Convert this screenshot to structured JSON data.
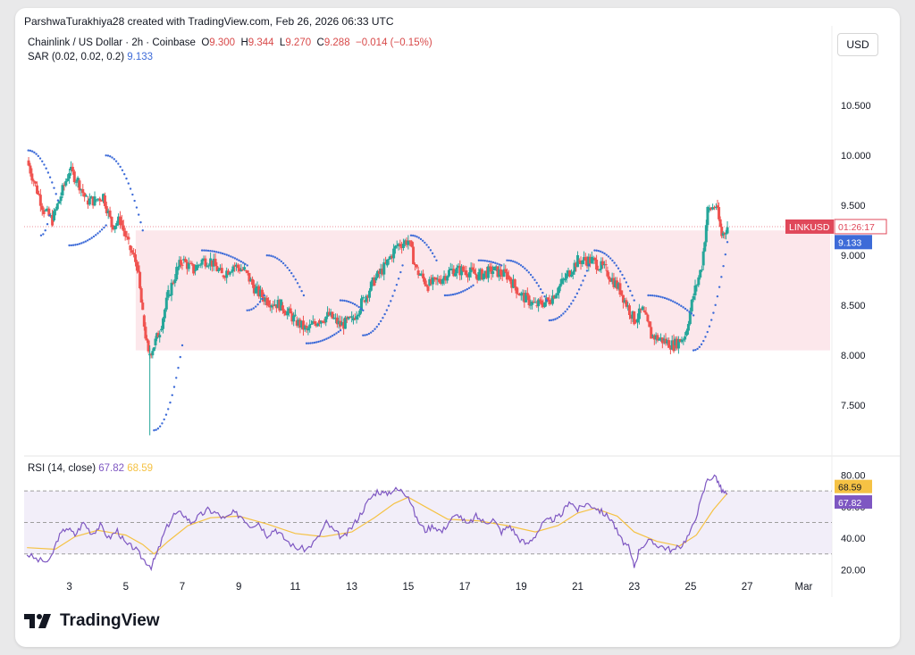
{
  "header": {
    "text": "ParshwaTurakhiya28 created with TradingView.com, Feb 26, 2026 06:33 UTC"
  },
  "legend": {
    "symbol": "Chainlink / US Dollar · 2h · Coinbase",
    "o_label": "O",
    "o_value": "9.300",
    "h_label": "H",
    "h_value": "9.344",
    "l_label": "L",
    "l_value": "9.270",
    "c_label": "C",
    "c_value": "9.288",
    "change": "−0.014 (−0.15%)",
    "sar_label": "SAR (0.02, 0.02, 0.2)",
    "sar_value": "9.133",
    "rsi_label": "RSI (14, close)",
    "rsi_value": "67.82",
    "rsi_ma_value": "68.59"
  },
  "currency_button": "USD",
  "footer": {
    "brand": "TradingView"
  },
  "colors": {
    "up": "#26a69a",
    "down": "#ef5350",
    "sar": "#3d6bd8",
    "rsi": "#7e57c2",
    "rsi_ma": "#f5c244",
    "zone": "#fbe3e7",
    "rsi_band": "#ede7f6",
    "price_tag": "#e0485a"
  },
  "chart_data": [
    {
      "type": "candlestick",
      "title": "Chainlink / US Dollar · 2h · Coinbase",
      "y_axis": {
        "ticks": [
          7.5,
          8.0,
          8.5,
          9.0,
          9.5,
          10.0,
          10.5
        ],
        "tick_labels": [
          "7.500",
          "8.000",
          "8.500",
          "9.000",
          "9.500",
          "10.000",
          "10.500"
        ],
        "ylim": [
          7.1,
          10.85
        ],
        "position": "right"
      },
      "x_axis": {
        "ticks": [
          3,
          5,
          7,
          9,
          11,
          13,
          15,
          17,
          19,
          21,
          23,
          25,
          27,
          "Mar"
        ],
        "tick_labels": [
          "3",
          "5",
          "7",
          "9",
          "11",
          "13",
          "15",
          "17",
          "19",
          "21",
          "23",
          "25",
          "27",
          "Mar"
        ],
        "xlim": [
          1.4,
          30.0
        ]
      },
      "price_tag": {
        "symbol": "LINKUSD",
        "countdown": "01:26:17",
        "value": 9.288
      },
      "sar_tag": {
        "value": "9.133"
      },
      "highlight_zone": {
        "y_low": 8.05,
        "y_high": 9.25,
        "x_start": 5.35,
        "x_end": 30.0
      },
      "current_price_line": 9.288,
      "approx_close_path": [
        [
          1.5,
          9.95
        ],
        [
          1.8,
          9.7
        ],
        [
          2.1,
          9.45
        ],
        [
          2.4,
          9.35
        ],
        [
          2.7,
          9.6
        ],
        [
          3.0,
          9.85
        ],
        [
          3.3,
          9.75
        ],
        [
          3.6,
          9.55
        ],
        [
          3.9,
          9.55
        ],
        [
          4.2,
          9.6
        ],
        [
          4.5,
          9.3
        ],
        [
          4.8,
          9.35
        ],
        [
          5.1,
          9.1
        ],
        [
          5.4,
          8.9
        ],
        [
          5.6,
          8.4
        ],
        [
          5.8,
          8.0
        ],
        [
          6.0,
          8.1
        ],
        [
          6.2,
          8.25
        ],
        [
          6.5,
          8.6
        ],
        [
          6.8,
          8.85
        ],
        [
          7.0,
          8.95
        ],
        [
          7.4,
          8.85
        ],
        [
          7.7,
          8.95
        ],
        [
          8.0,
          8.95
        ],
        [
          8.4,
          8.8
        ],
        [
          8.8,
          8.9
        ],
        [
          9.2,
          8.85
        ],
        [
          9.6,
          8.65
        ],
        [
          10.0,
          8.55
        ],
        [
          10.5,
          8.5
        ],
        [
          11.0,
          8.35
        ],
        [
          11.4,
          8.25
        ],
        [
          11.8,
          8.35
        ],
        [
          12.2,
          8.4
        ],
        [
          12.6,
          8.3
        ],
        [
          13.0,
          8.35
        ],
        [
          13.4,
          8.55
        ],
        [
          13.8,
          8.75
        ],
        [
          14.2,
          8.9
        ],
        [
          14.6,
          9.1
        ],
        [
          15.0,
          9.15
        ],
        [
          15.3,
          8.85
        ],
        [
          15.7,
          8.7
        ],
        [
          16.1,
          8.75
        ],
        [
          16.5,
          8.85
        ],
        [
          17.0,
          8.85
        ],
        [
          17.5,
          8.8
        ],
        [
          18.0,
          8.85
        ],
        [
          18.5,
          8.8
        ],
        [
          19.0,
          8.6
        ],
        [
          19.5,
          8.5
        ],
        [
          20.0,
          8.55
        ],
        [
          20.5,
          8.75
        ],
        [
          21.0,
          8.95
        ],
        [
          21.5,
          8.95
        ],
        [
          22.0,
          8.85
        ],
        [
          22.5,
          8.65
        ],
        [
          23.0,
          8.35
        ],
        [
          23.3,
          8.45
        ],
        [
          23.6,
          8.2
        ],
        [
          24.0,
          8.15
        ],
        [
          24.4,
          8.1
        ],
        [
          24.8,
          8.2
        ],
        [
          25.1,
          8.6
        ],
        [
          25.4,
          8.9
        ],
        [
          25.6,
          9.45
        ],
        [
          25.9,
          9.5
        ],
        [
          26.1,
          9.2
        ],
        [
          26.3,
          9.288
        ]
      ]
    },
    {
      "type": "line",
      "title": "RSI (14, close)",
      "y_axis": {
        "ticks": [
          20,
          40,
          60,
          80
        ],
        "tick_labels": [
          "20.00",
          "40.00",
          "60.00",
          "80.00"
        ],
        "ylim": [
          14,
          82
        ]
      },
      "bands": {
        "upper": 70,
        "middle": 50,
        "lower": 30
      },
      "last_values": {
        "rsi": 67.82,
        "rsi_ma": 68.59
      },
      "series": [
        {
          "name": "RSI",
          "points": [
            [
              1.5,
              30
            ],
            [
              1.9,
              26
            ],
            [
              2.3,
              25
            ],
            [
              2.6,
              40
            ],
            [
              2.9,
              47
            ],
            [
              3.2,
              42
            ],
            [
              3.5,
              50
            ],
            [
              3.8,
              43
            ],
            [
              4.1,
              48
            ],
            [
              4.4,
              40
            ],
            [
              4.7,
              45
            ],
            [
              5.0,
              36
            ],
            [
              5.3,
              34
            ],
            [
              5.6,
              27
            ],
            [
              5.9,
              22
            ],
            [
              6.1,
              30
            ],
            [
              6.4,
              45
            ],
            [
              6.7,
              55
            ],
            [
              7.0,
              56
            ],
            [
              7.3,
              50
            ],
            [
              7.6,
              54
            ],
            [
              7.9,
              58
            ],
            [
              8.2,
              56
            ],
            [
              8.5,
              52
            ],
            [
              8.8,
              56
            ],
            [
              9.1,
              54
            ],
            [
              9.4,
              48
            ],
            [
              9.7,
              50
            ],
            [
              10.0,
              42
            ],
            [
              10.3,
              46
            ],
            [
              10.6,
              40
            ],
            [
              11.0,
              34
            ],
            [
              11.4,
              33
            ],
            [
              11.8,
              40
            ],
            [
              12.1,
              50
            ],
            [
              12.4,
              44
            ],
            [
              12.7,
              40
            ],
            [
              13.0,
              47
            ],
            [
              13.3,
              55
            ],
            [
              13.6,
              64
            ],
            [
              13.9,
              70
            ],
            [
              14.2,
              68
            ],
            [
              14.5,
              71
            ],
            [
              14.8,
              70
            ],
            [
              15.0,
              67
            ],
            [
              15.3,
              52
            ],
            [
              15.6,
              45
            ],
            [
              15.9,
              48
            ],
            [
              16.2,
              44
            ],
            [
              16.5,
              52
            ],
            [
              16.8,
              55
            ],
            [
              17.1,
              48
            ],
            [
              17.4,
              54
            ],
            [
              17.7,
              50
            ],
            [
              18.0,
              52
            ],
            [
              18.3,
              44
            ],
            [
              18.6,
              48
            ],
            [
              18.9,
              40
            ],
            [
              19.2,
              36
            ],
            [
              19.5,
              42
            ],
            [
              19.8,
              50
            ],
            [
              20.1,
              52
            ],
            [
              20.4,
              54
            ],
            [
              20.7,
              64
            ],
            [
              21.0,
              58
            ],
            [
              21.3,
              62
            ],
            [
              21.6,
              60
            ],
            [
              21.9,
              56
            ],
            [
              22.2,
              52
            ],
            [
              22.5,
              40
            ],
            [
              22.8,
              34
            ],
            [
              23.0,
              22
            ],
            [
              23.2,
              34
            ],
            [
              23.5,
              38
            ],
            [
              23.8,
              36
            ],
            [
              24.1,
              34
            ],
            [
              24.4,
              32
            ],
            [
              24.7,
              36
            ],
            [
              25.0,
              44
            ],
            [
              25.3,
              60
            ],
            [
              25.6,
              78
            ],
            [
              25.9,
              79
            ],
            [
              26.1,
              70
            ],
            [
              26.3,
              67.82
            ]
          ]
        },
        {
          "name": "RSI-based MA",
          "points": [
            [
              1.5,
              34
            ],
            [
              2.5,
              33
            ],
            [
              3.2,
              41
            ],
            [
              4.0,
              45
            ],
            [
              5.0,
              42
            ],
            [
              5.6,
              36
            ],
            [
              6.0,
              30
            ],
            [
              6.5,
              38
            ],
            [
              7.2,
              48
            ],
            [
              8.0,
              53
            ],
            [
              9.0,
              54
            ],
            [
              10.0,
              49
            ],
            [
              11.0,
              43
            ],
            [
              12.0,
              41
            ],
            [
              13.0,
              44
            ],
            [
              13.8,
              53
            ],
            [
              14.5,
              62
            ],
            [
              15.0,
              66
            ],
            [
              15.6,
              60
            ],
            [
              16.4,
              52
            ],
            [
              17.5,
              51
            ],
            [
              18.5,
              48
            ],
            [
              19.5,
              44
            ],
            [
              20.3,
              48
            ],
            [
              21.0,
              56
            ],
            [
              21.6,
              59
            ],
            [
              22.4,
              54
            ],
            [
              23.0,
              44
            ],
            [
              23.8,
              38
            ],
            [
              24.6,
              35
            ],
            [
              25.2,
              42
            ],
            [
              25.8,
              58
            ],
            [
              26.3,
              68.59
            ]
          ]
        }
      ]
    }
  ]
}
